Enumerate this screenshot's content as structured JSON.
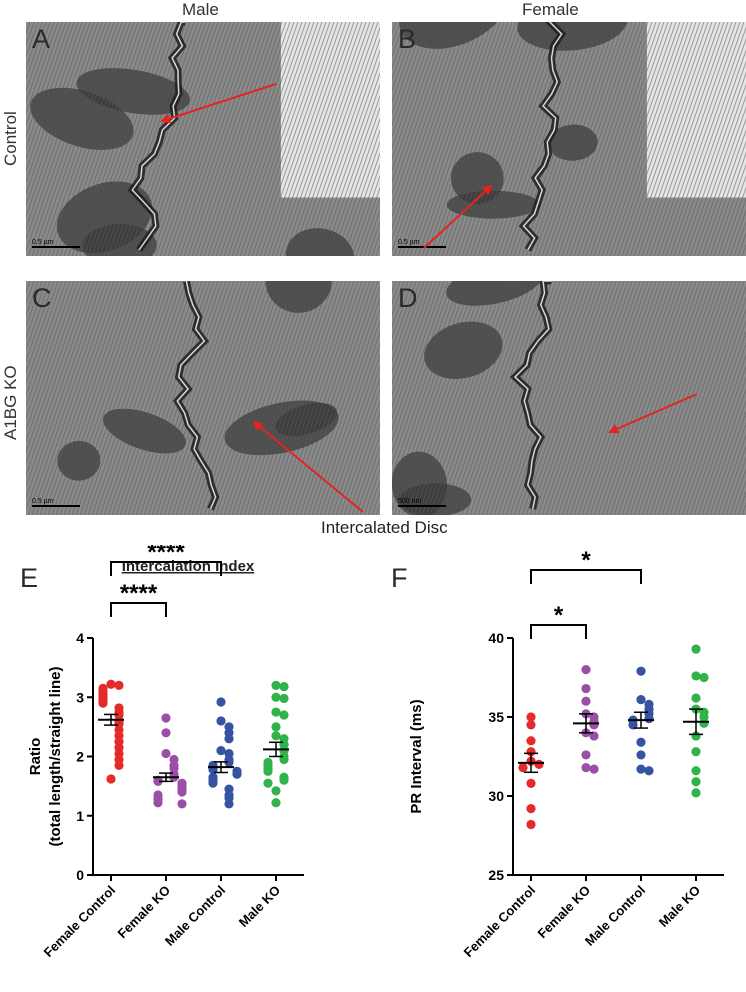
{
  "column_labels": [
    "Male",
    "Female"
  ],
  "row_labels": [
    "Control",
    "A1BG KO"
  ],
  "panels": [
    {
      "id": "A",
      "scale_bar": "0.5 µm",
      "membrane": "light"
    },
    {
      "id": "B",
      "scale_bar": "0.5 µm",
      "membrane": "light"
    },
    {
      "id": "C",
      "scale_bar": "0.5 µm",
      "membrane": "medium"
    },
    {
      "id": "D",
      "scale_bar": "500 nm",
      "membrane": "medium"
    }
  ],
  "callout_label": "Intercalated Disc",
  "colors": {
    "female_control": "#e52a2a",
    "female_ko": "#9a4fa6",
    "male_control": "#3553a2",
    "male_ko": "#2fb34a",
    "arrow": "#e3241f"
  },
  "chart_data": [
    {
      "panel": "E",
      "type": "scatter",
      "title": "Intercalation Index",
      "ylabel": "Ratio\n(total length/straight line)",
      "ylim": [
        0,
        4
      ],
      "yticks": [
        0,
        1,
        2,
        3,
        4
      ],
      "categories": [
        "Female Control",
        "Female KO",
        "Male Control",
        "Male KO"
      ],
      "means": [
        2.62,
        1.65,
        1.82,
        2.12
      ],
      "sems": [
        0.09,
        0.07,
        0.09,
        0.12
      ],
      "series": [
        {
          "values": [
            3.22,
            3.2,
            3.15,
            3.1,
            3.05,
            3.0,
            2.95,
            2.9,
            2.82,
            2.75,
            2.7,
            2.6,
            2.55,
            2.45,
            2.35,
            2.25,
            2.15,
            2.05,
            1.95,
            1.85,
            1.62
          ]
        },
        {
          "values": [
            2.65,
            2.4,
            2.05,
            1.95,
            1.85,
            1.8,
            1.7,
            1.65,
            1.6,
            1.58,
            1.55,
            1.5,
            1.48,
            1.45,
            1.4,
            1.35,
            1.3,
            1.28,
            1.22,
            1.2
          ]
        },
        {
          "values": [
            2.92,
            2.6,
            2.5,
            2.4,
            2.3,
            2.1,
            2.05,
            1.95,
            1.9,
            1.85,
            1.8,
            1.78,
            1.75,
            1.7,
            1.65,
            1.6,
            1.55,
            1.45,
            1.35,
            1.3,
            1.2
          ]
        },
        {
          "values": [
            3.2,
            3.18,
            3.0,
            2.98,
            2.75,
            2.7,
            2.5,
            2.35,
            2.3,
            2.2,
            2.1,
            2.0,
            1.95,
            1.9,
            1.85,
            1.8,
            1.75,
            1.65,
            1.6,
            1.55,
            1.42,
            1.22
          ]
        }
      ],
      "significance": [
        {
          "from": 0,
          "to": 1,
          "label": "****"
        },
        {
          "from": 0,
          "to": 2,
          "label": "****"
        }
      ]
    },
    {
      "panel": "F",
      "type": "scatter",
      "title": "",
      "ylabel": "PR Interval (ms)",
      "ylim": [
        25,
        40
      ],
      "yticks": [
        25,
        30,
        35,
        40
      ],
      "categories": [
        "Female Control",
        "Female KO",
        "Male Control",
        "Male KO"
      ],
      "means": [
        32.1,
        34.6,
        34.8,
        34.7
      ],
      "sems": [
        0.6,
        0.6,
        0.5,
        0.8
      ],
      "series": [
        {
          "values": [
            35.0,
            34.5,
            33.5,
            32.8,
            32.2,
            32.0,
            31.8,
            30.8,
            29.2,
            28.2
          ]
        },
        {
          "values": [
            38.0,
            36.8,
            36.0,
            35.2,
            35.0,
            34.7,
            34.5,
            34.0,
            33.8,
            32.6,
            31.8,
            31.7
          ]
        },
        {
          "values": [
            37.9,
            36.1,
            35.8,
            35.5,
            35.2,
            34.9,
            34.8,
            34.5,
            33.4,
            32.6,
            31.7,
            31.6
          ]
        },
        {
          "values": [
            39.3,
            37.6,
            37.5,
            36.2,
            35.5,
            35.3,
            35.0,
            34.6,
            33.8,
            32.8,
            31.6,
            30.9,
            30.2
          ]
        }
      ],
      "significance": [
        {
          "from": 0,
          "to": 1,
          "label": "*"
        },
        {
          "from": 0,
          "to": 2,
          "label": "*"
        }
      ]
    }
  ]
}
